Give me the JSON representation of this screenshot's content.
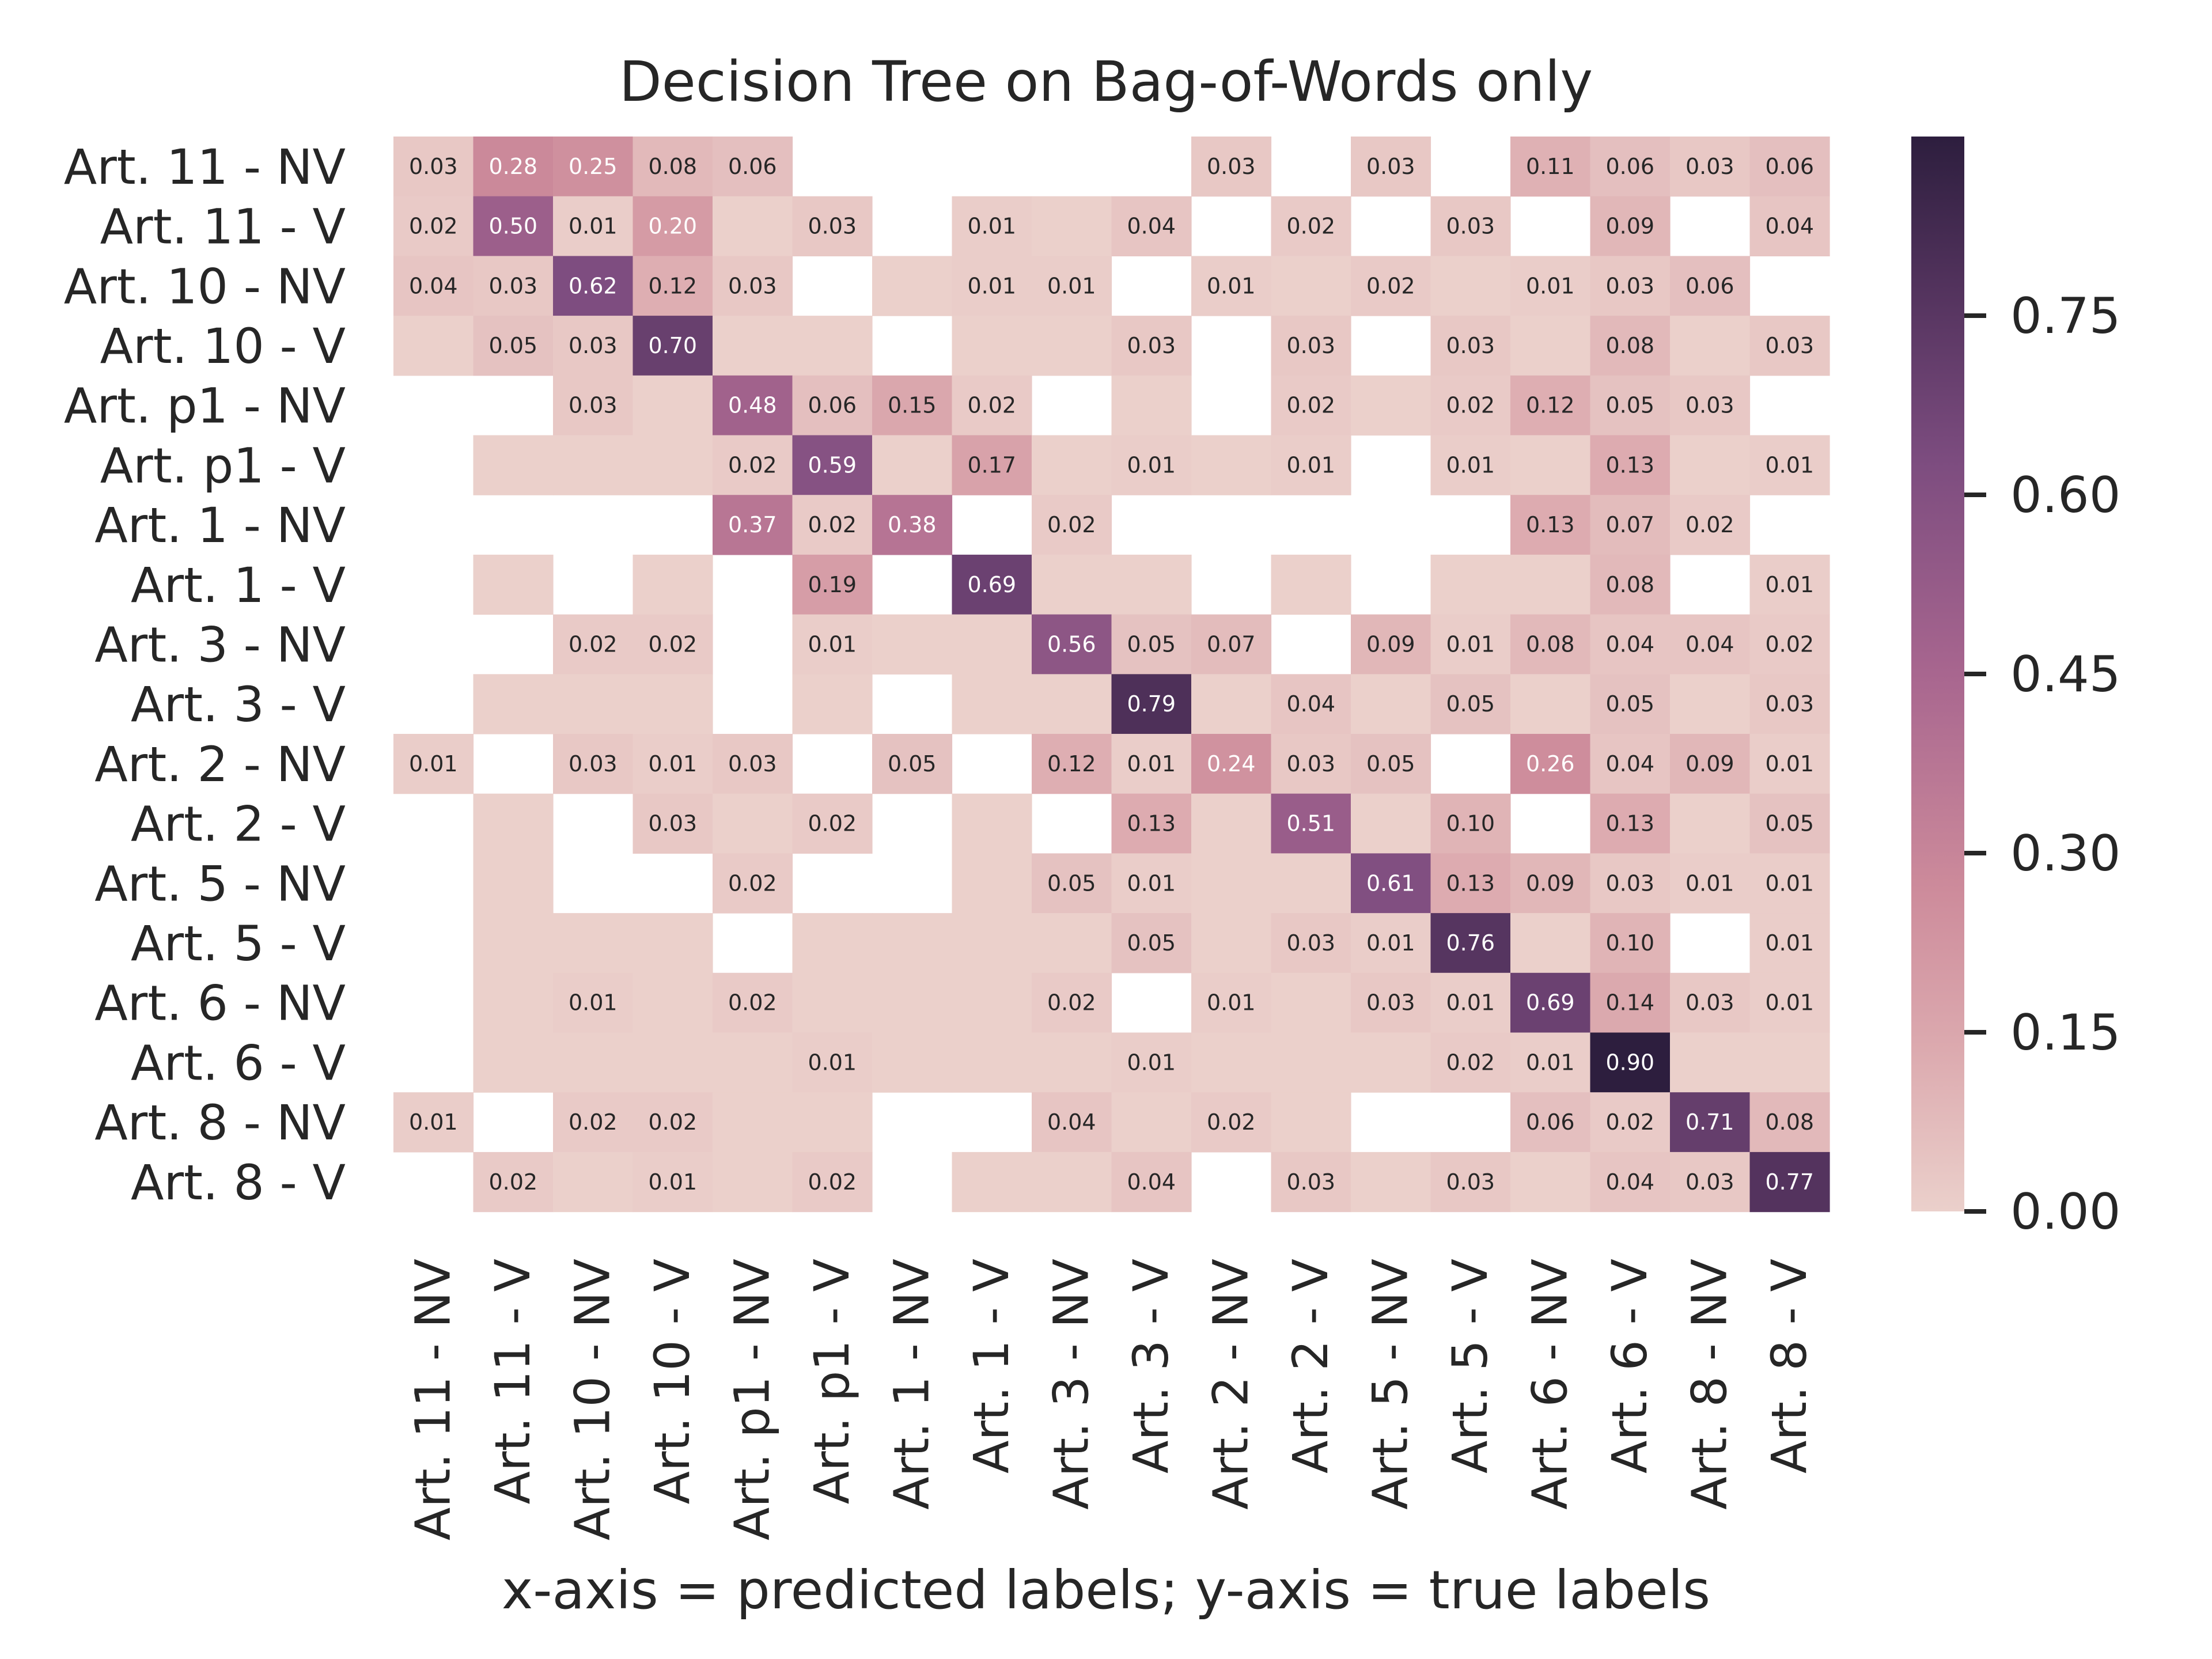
{
  "chart_data": {
    "type": "heatmap",
    "title": "Decision Tree on Bag-of-Words only",
    "xlabel": "x-axis = predicted labels; y-axis = true labels",
    "ylabel": "",
    "labels": [
      "Art. 11 - NV",
      "Art. 11 - V",
      "Art. 10 - NV",
      "Art. 10 - V",
      "Art. p1 - NV",
      "Art. p1 - V",
      "Art. 1 - NV",
      "Art. 1 - V",
      "Art. 3 - NV",
      "Art. 3 - V",
      "Art. 2 - NV",
      "Art. 2 - V",
      "Art. 5 - NV",
      "Art. 5 - V",
      "Art. 6 - NV",
      "Art. 6 - V",
      "Art. 8 - NV",
      "Art. 8 - V"
    ],
    "values": [
      [
        0.03,
        0.28,
        0.25,
        0.08,
        0.06,
        null,
        null,
        null,
        null,
        null,
        0.03,
        null,
        0.03,
        null,
        0.11,
        0.06,
        0.03,
        0.06
      ],
      [
        0.02,
        0.5,
        0.01,
        0.2,
        0,
        0.03,
        null,
        0.01,
        0,
        0.04,
        null,
        0.02,
        null,
        0.03,
        null,
        0.09,
        null,
        0.04
      ],
      [
        0.04,
        0.03,
        0.62,
        0.12,
        0.03,
        null,
        0,
        0.01,
        0.01,
        null,
        0.01,
        0,
        0.02,
        0,
        0.01,
        0.03,
        0.06,
        null
      ],
      [
        0,
        0.05,
        0.03,
        0.7,
        0,
        0,
        null,
        0,
        0,
        0.03,
        null,
        0.03,
        null,
        0.03,
        0,
        0.08,
        0,
        0.03
      ],
      [
        null,
        null,
        0.03,
        0,
        0.48,
        0.06,
        0.15,
        0.02,
        null,
        0,
        null,
        0.02,
        0,
        0.02,
        0.12,
        0.05,
        0.03,
        null
      ],
      [
        null,
        0,
        0,
        0,
        0.02,
        0.59,
        0,
        0.17,
        0,
        0.01,
        0,
        0.01,
        null,
        0.01,
        0,
        0.13,
        0,
        0.01
      ],
      [
        null,
        null,
        null,
        null,
        0.37,
        0.02,
        0.38,
        null,
        0.02,
        null,
        null,
        null,
        null,
        null,
        0.13,
        0.07,
        0.02,
        null
      ],
      [
        null,
        0,
        null,
        0,
        null,
        0.19,
        null,
        0.69,
        0,
        0,
        null,
        0,
        null,
        0,
        0,
        0.08,
        null,
        0.01
      ],
      [
        null,
        null,
        0.02,
        0.02,
        null,
        0.01,
        0,
        0,
        0.56,
        0.05,
        0.07,
        null,
        0.09,
        0.01,
        0.08,
        0.04,
        0.04,
        0.02
      ],
      [
        null,
        0,
        0,
        0,
        null,
        0,
        null,
        0,
        0,
        0.79,
        0,
        0.04,
        0,
        0.05,
        0,
        0.05,
        0,
        0.03
      ],
      [
        0.01,
        null,
        0.03,
        0.01,
        0.03,
        null,
        0.05,
        null,
        0.12,
        0.01,
        0.24,
        0.03,
        0.05,
        null,
        0.26,
        0.04,
        0.09,
        0.01
      ],
      [
        null,
        0,
        null,
        0.03,
        0,
        0.02,
        null,
        0,
        null,
        0.13,
        0,
        0.51,
        0,
        0.1,
        null,
        0.13,
        0,
        0.05
      ],
      [
        null,
        0,
        null,
        null,
        0.02,
        null,
        null,
        0,
        0.05,
        0.01,
        0,
        0,
        0.61,
        0.13,
        0.09,
        0.03,
        0.01,
        0.01
      ],
      [
        null,
        0,
        0,
        0,
        null,
        0,
        0,
        0,
        0,
        0.05,
        0,
        0.03,
        0.01,
        0.76,
        0,
        0.1,
        null,
        0.01
      ],
      [
        null,
        0,
        0.01,
        0,
        0.02,
        0,
        0,
        0,
        0.02,
        null,
        0.01,
        0,
        0.03,
        0.01,
        0.69,
        0.14,
        0.03,
        0.01
      ],
      [
        null,
        0,
        0,
        0,
        0,
        0.01,
        0,
        0,
        0,
        0.01,
        0,
        0,
        0,
        0.02,
        0.01,
        0.9,
        0,
        0
      ],
      [
        0.01,
        null,
        0.02,
        0.02,
        0,
        0,
        null,
        null,
        0.04,
        0,
        0.02,
        0,
        null,
        null,
        0.06,
        0.02,
        0.71,
        0.08
      ],
      [
        null,
        0.02,
        0,
        0.01,
        0,
        0.02,
        null,
        0,
        0,
        0.04,
        null,
        0.03,
        0,
        0.03,
        0,
        0.04,
        0.03,
        0.77
      ]
    ],
    "colorbar": {
      "ticks": [
        "0.00",
        "0.15",
        "0.30",
        "0.45",
        "0.60",
        "0.75"
      ],
      "tick_values": [
        0,
        0.15,
        0.3,
        0.45,
        0.6,
        0.75
      ],
      "vmin": 0,
      "vmax": 0.9
    },
    "colors": {
      "low": "#ebd0cb",
      "high": "#2d1e3e"
    }
  }
}
